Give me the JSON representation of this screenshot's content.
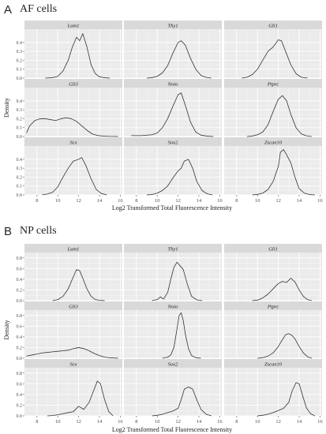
{
  "panels": [
    {
      "letter": "A",
      "title": "AF cells"
    },
    {
      "letter": "B",
      "title": "NP cells"
    }
  ],
  "chart_data": [
    {
      "type": "area",
      "panel": "A",
      "title": "AF cells",
      "xlabel": "Log2 Transformed Total Fluorescence Intensity",
      "ylabel": "Density",
      "xlim": [
        6.8,
        16.2
      ],
      "ylim": [
        0,
        0.55
      ],
      "x_ticks": [
        8,
        10,
        12,
        14,
        16
      ],
      "y_ticks": [
        0.0,
        0.1,
        0.2,
        0.3,
        0.4
      ],
      "facets": [
        {
          "label": "Lam1",
          "x": [
            8.8,
            9.5,
            10,
            10.5,
            11,
            11.4,
            11.8,
            12.1,
            12.4,
            12.8,
            13.2,
            13.6,
            14,
            14.5,
            15
          ],
          "y": [
            0,
            0.005,
            0.02,
            0.08,
            0.2,
            0.35,
            0.46,
            0.42,
            0.5,
            0.35,
            0.15,
            0.05,
            0.015,
            0.004,
            0
          ]
        },
        {
          "label": "Thy1",
          "x": [
            9,
            9.5,
            10,
            10.5,
            11,
            11.5,
            12,
            12.3,
            12.7,
            13.2,
            13.7,
            14.2,
            14.7,
            15.2
          ],
          "y": [
            0,
            0.005,
            0.02,
            0.06,
            0.14,
            0.28,
            0.4,
            0.42,
            0.37,
            0.22,
            0.1,
            0.03,
            0.008,
            0
          ]
        },
        {
          "label": "Gli1",
          "x": [
            8.5,
            9,
            9.5,
            10,
            10.5,
            11,
            11.5,
            12,
            12.3,
            12.7,
            13.2,
            13.7,
            14.2,
            14.8
          ],
          "y": [
            0,
            0.01,
            0.04,
            0.1,
            0.2,
            0.3,
            0.35,
            0.43,
            0.42,
            0.3,
            0.15,
            0.05,
            0.01,
            0
          ]
        },
        {
          "label": "Gli3",
          "x": [
            7,
            7.3,
            7.8,
            8.3,
            8.8,
            9.3,
            9.8,
            10.3,
            10.8,
            11.3,
            11.8,
            12.3,
            12.8,
            13.3,
            13.8,
            14.3,
            14.8,
            15.3,
            15.8
          ],
          "y": [
            0.04,
            0.12,
            0.18,
            0.2,
            0.2,
            0.19,
            0.18,
            0.2,
            0.21,
            0.2,
            0.17,
            0.12,
            0.07,
            0.03,
            0.012,
            0.005,
            0.002,
            0.001,
            0
          ]
        },
        {
          "label": "Noto",
          "x": [
            7.5,
            8.5,
            9.5,
            10,
            10.5,
            11,
            11.5,
            12,
            12.3,
            12.7,
            13.2,
            13.7,
            14.2,
            14.8,
            15.4
          ],
          "y": [
            0.01,
            0.01,
            0.02,
            0.04,
            0.1,
            0.2,
            0.34,
            0.47,
            0.49,
            0.35,
            0.16,
            0.05,
            0.015,
            0.004,
            0
          ]
        },
        {
          "label": "Ptprc",
          "x": [
            9,
            9.5,
            10,
            10.5,
            11,
            11.5,
            12,
            12.4,
            12.8,
            13.2,
            13.7,
            14.2,
            14.7,
            15.2
          ],
          "y": [
            0,
            0.005,
            0.02,
            0.05,
            0.13,
            0.28,
            0.42,
            0.46,
            0.4,
            0.25,
            0.1,
            0.03,
            0.008,
            0
          ]
        },
        {
          "label": "Scx",
          "x": [
            8.5,
            9,
            9.5,
            10,
            10.5,
            11,
            11.5,
            12,
            12.3,
            12.7,
            13.2,
            13.7,
            14.2,
            14.7
          ],
          "y": [
            0,
            0.01,
            0.03,
            0.09,
            0.2,
            0.3,
            0.38,
            0.4,
            0.42,
            0.33,
            0.18,
            0.06,
            0.015,
            0
          ]
        },
        {
          "label": "Sox2",
          "x": [
            9,
            9.5,
            10,
            10.5,
            11,
            11.5,
            12,
            12.3,
            12.6,
            13,
            13.4,
            13.8,
            14.3,
            14.8,
            15.3
          ],
          "y": [
            0,
            0.004,
            0.02,
            0.05,
            0.1,
            0.19,
            0.27,
            0.3,
            0.38,
            0.4,
            0.3,
            0.15,
            0.05,
            0.012,
            0
          ]
        },
        {
          "label": "Zscan10",
          "x": [
            9.5,
            10,
            10.5,
            11,
            11.5,
            12,
            12.2,
            12.5,
            12.8,
            13.2,
            13.6,
            14,
            14.5,
            15,
            15.5
          ],
          "y": [
            0,
            0.005,
            0.02,
            0.06,
            0.15,
            0.32,
            0.48,
            0.51,
            0.45,
            0.36,
            0.2,
            0.07,
            0.02,
            0.004,
            0
          ]
        }
      ]
    },
    {
      "type": "area",
      "panel": "B",
      "title": "NP cells",
      "xlabel": "Log2 Transformed Total Fluorescence Intensity",
      "ylabel": "Density",
      "xlim": [
        6.8,
        16.2
      ],
      "ylim": [
        0,
        0.9
      ],
      "x_ticks": [
        8,
        10,
        12,
        14,
        16
      ],
      "y_ticks": [
        0.0,
        0.2,
        0.4,
        0.6,
        0.8
      ],
      "facets": [
        {
          "label": "Lam1",
          "x": [
            9.5,
            10,
            10.5,
            11,
            11.5,
            11.8,
            12.1,
            12.4,
            12.8,
            13.2,
            13.6,
            14,
            14.5
          ],
          "y": [
            0,
            0.02,
            0.08,
            0.22,
            0.45,
            0.58,
            0.56,
            0.42,
            0.22,
            0.08,
            0.02,
            0.005,
            0
          ]
        },
        {
          "label": "Thy1",
          "x": [
            9.5,
            10,
            10.3,
            10.6,
            11,
            11.3,
            11.6,
            11.9,
            12.2,
            12.5,
            12.9,
            13.3,
            13.8,
            14.3
          ],
          "y": [
            0,
            0.02,
            0.07,
            0.03,
            0.15,
            0.4,
            0.62,
            0.72,
            0.65,
            0.58,
            0.3,
            0.08,
            0.015,
            0
          ]
        },
        {
          "label": "Gli1",
          "x": [
            9.5,
            10,
            10.5,
            11,
            11.5,
            12,
            12.4,
            12.8,
            13.2,
            13.6,
            14,
            14.4,
            14.8,
            15.2
          ],
          "y": [
            0,
            0.01,
            0.05,
            0.12,
            0.22,
            0.32,
            0.36,
            0.34,
            0.42,
            0.35,
            0.2,
            0.08,
            0.02,
            0
          ]
        },
        {
          "label": "Gli3",
          "x": [
            7,
            7.5,
            8,
            8.5,
            9,
            9.5,
            10,
            10.5,
            11,
            11.5,
            12,
            12.5,
            13,
            13.5,
            14,
            14.5,
            15,
            15.8
          ],
          "y": [
            0.04,
            0.06,
            0.08,
            0.1,
            0.11,
            0.12,
            0.13,
            0.14,
            0.15,
            0.18,
            0.2,
            0.18,
            0.14,
            0.09,
            0.05,
            0.02,
            0.008,
            0
          ]
        },
        {
          "label": "Noto",
          "x": [
            10.5,
            11,
            11.3,
            11.6,
            11.9,
            12.1,
            12.3,
            12.5,
            12.7,
            13,
            13.3,
            13.7,
            14.2
          ],
          "y": [
            0,
            0.02,
            0.06,
            0.2,
            0.55,
            0.8,
            0.85,
            0.7,
            0.45,
            0.18,
            0.05,
            0.01,
            0
          ]
        },
        {
          "label": "Ptprc",
          "x": [
            10,
            10.5,
            11,
            11.5,
            12,
            12.4,
            12.7,
            13,
            13.3,
            13.6,
            14,
            14.4,
            14.8,
            15.2
          ],
          "y": [
            0,
            0.01,
            0.04,
            0.1,
            0.22,
            0.35,
            0.44,
            0.46,
            0.43,
            0.36,
            0.22,
            0.1,
            0.03,
            0
          ]
        },
        {
          "label": "Scx",
          "x": [
            9,
            9.5,
            10,
            10.5,
            11,
            11.5,
            12,
            12.5,
            13,
            13.4,
            13.8,
            14.1,
            14.5,
            14.9,
            15.3
          ],
          "y": [
            0,
            0.005,
            0.02,
            0.04,
            0.06,
            0.08,
            0.18,
            0.12,
            0.25,
            0.45,
            0.65,
            0.6,
            0.3,
            0.08,
            0
          ]
        },
        {
          "label": "Sox2",
          "x": [
            9.5,
            10,
            10.5,
            11,
            11.5,
            12,
            12.3,
            12.6,
            13,
            13.4,
            13.8,
            14.2,
            14.7,
            15.2
          ],
          "y": [
            0,
            0.01,
            0.03,
            0.06,
            0.09,
            0.14,
            0.3,
            0.5,
            0.54,
            0.5,
            0.3,
            0.12,
            0.03,
            0
          ]
        },
        {
          "label": "Zscan10",
          "x": [
            10,
            10.5,
            11,
            11.5,
            12,
            12.5,
            13,
            13.3,
            13.7,
            14,
            14.3,
            14.7,
            15.1,
            15.5
          ],
          "y": [
            0,
            0.01,
            0.03,
            0.06,
            0.1,
            0.14,
            0.25,
            0.45,
            0.62,
            0.6,
            0.4,
            0.15,
            0.04,
            0
          ]
        }
      ]
    }
  ]
}
